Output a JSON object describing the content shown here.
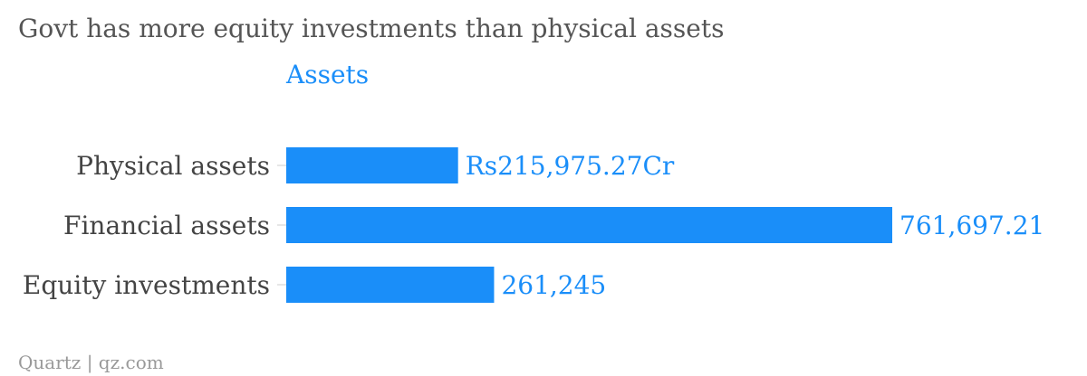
{
  "chart_data": {
    "type": "bar",
    "orientation": "horizontal",
    "title": "Govt has more equity investments than physical assets",
    "series": [
      {
        "name": "Assets",
        "values": [
          215975.27,
          761697.21,
          261245
        ],
        "value_labels": [
          "Rs215,975.27Cr",
          "761,697.21",
          "261,245"
        ]
      }
    ],
    "categories": [
      "Physical assets",
      "Financial assets",
      "Equity investments"
    ],
    "xlim": [
      0,
      761697.21
    ],
    "grid": false,
    "bar_color": "#1a8ef9"
  },
  "footer": "Quartz | qz.com"
}
